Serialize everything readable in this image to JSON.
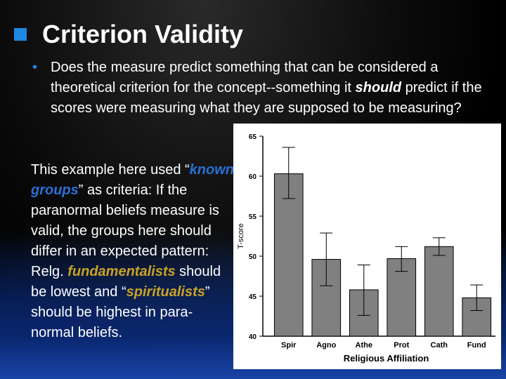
{
  "slide": {
    "title": "Criterion Validity",
    "bullet_text_1": "Does the measure predict something that can be considered a theoretical criterion for the concept--something it ",
    "bullet_emph": "should",
    "bullet_text_2": " predict if the scores were measuring what they are supposed to be measuring?",
    "p2_a": "This example here used “",
    "p2_known": "known groups",
    "p2_b": "” as criteria: If the paranormal beliefs measure is valid, the groups here should differ in an expected pattern:  Relg. ",
    "p2_fund": "fundamentalists",
    "p2_c": " should be lowest and “",
    "p2_spir": "spiritualists",
    "p2_d": "” should be highest in para-normal beliefs."
  },
  "colors": {
    "accent": "#1e88e5",
    "bar": "#808080",
    "known": "#2b6fd6",
    "gold": "#c9a227"
  },
  "chart_data": {
    "type": "bar",
    "categories": [
      "Spir",
      "Agno",
      "Athe",
      "Prot",
      "Cath",
      "Fund"
    ],
    "values": [
      60.3,
      49.6,
      45.8,
      49.7,
      51.2,
      44.8
    ],
    "error_low": [
      57.2,
      46.3,
      42.6,
      48.1,
      50.1,
      43.2
    ],
    "error_high": [
      63.6,
      52.9,
      48.9,
      51.2,
      52.3,
      46.4
    ],
    "xlabel": "Religious Affiliation",
    "ylabel": "T-score",
    "ylim": [
      40,
      65
    ],
    "yticks": [
      "40",
      "45",
      "50",
      "55",
      "60",
      "65"
    ],
    "grid": false
  }
}
